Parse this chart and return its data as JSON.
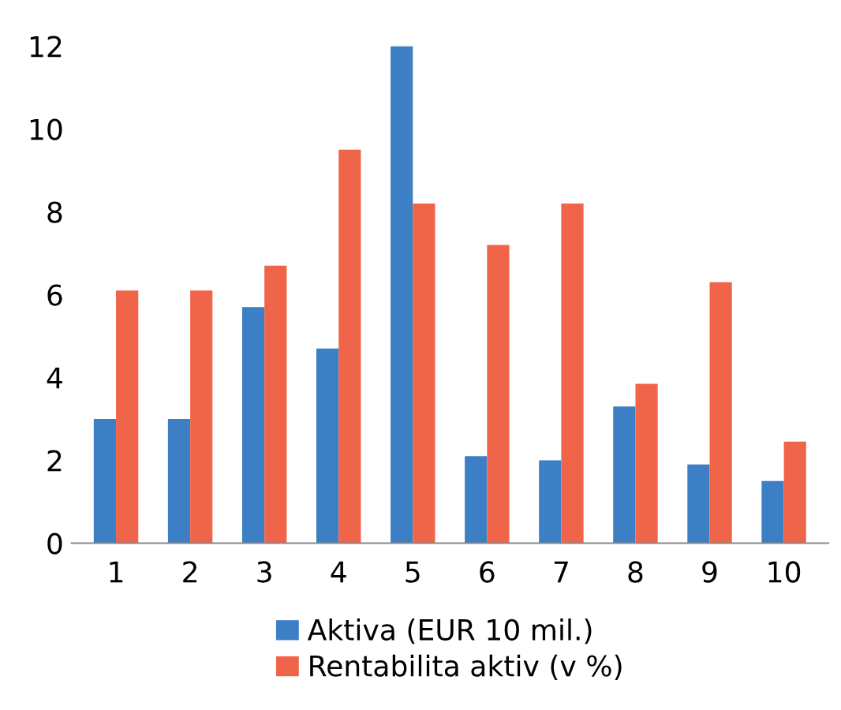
{
  "chart_data": {
    "type": "bar",
    "categories": [
      "1",
      "2",
      "3",
      "4",
      "5",
      "6",
      "7",
      "8",
      "9",
      "10"
    ],
    "series": [
      {
        "name": "Aktiva (EUR 10 mil.)",
        "color": "#3d7fc4",
        "values": [
          3.0,
          3.0,
          5.7,
          4.7,
          12,
          2.1,
          2.0,
          3.3,
          1.9,
          1.5
        ]
      },
      {
        "name": "Rentabilita aktiv (v %)",
        "color": "#f0644a",
        "values": [
          6.1,
          6.1,
          6.7,
          9.5,
          8.2,
          7.2,
          8.2,
          3.85,
          6.3,
          2.45
        ]
      }
    ],
    "ylim": [
      0,
      12
    ],
    "yticks": [
      0,
      2,
      4,
      6,
      8,
      10,
      12
    ],
    "grid": false,
    "legend": "bottom"
  }
}
